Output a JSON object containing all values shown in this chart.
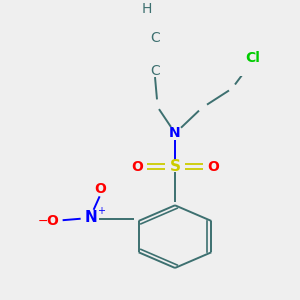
{
  "bg_color": "#efefef",
  "atom_colors": {
    "C": "#3d7070",
    "H": "#3d7070",
    "N": "#0000ff",
    "O": "#ff0000",
    "S": "#cccc00",
    "Cl": "#00cc00"
  },
  "figsize": [
    3.0,
    3.0
  ],
  "dpi": 100
}
